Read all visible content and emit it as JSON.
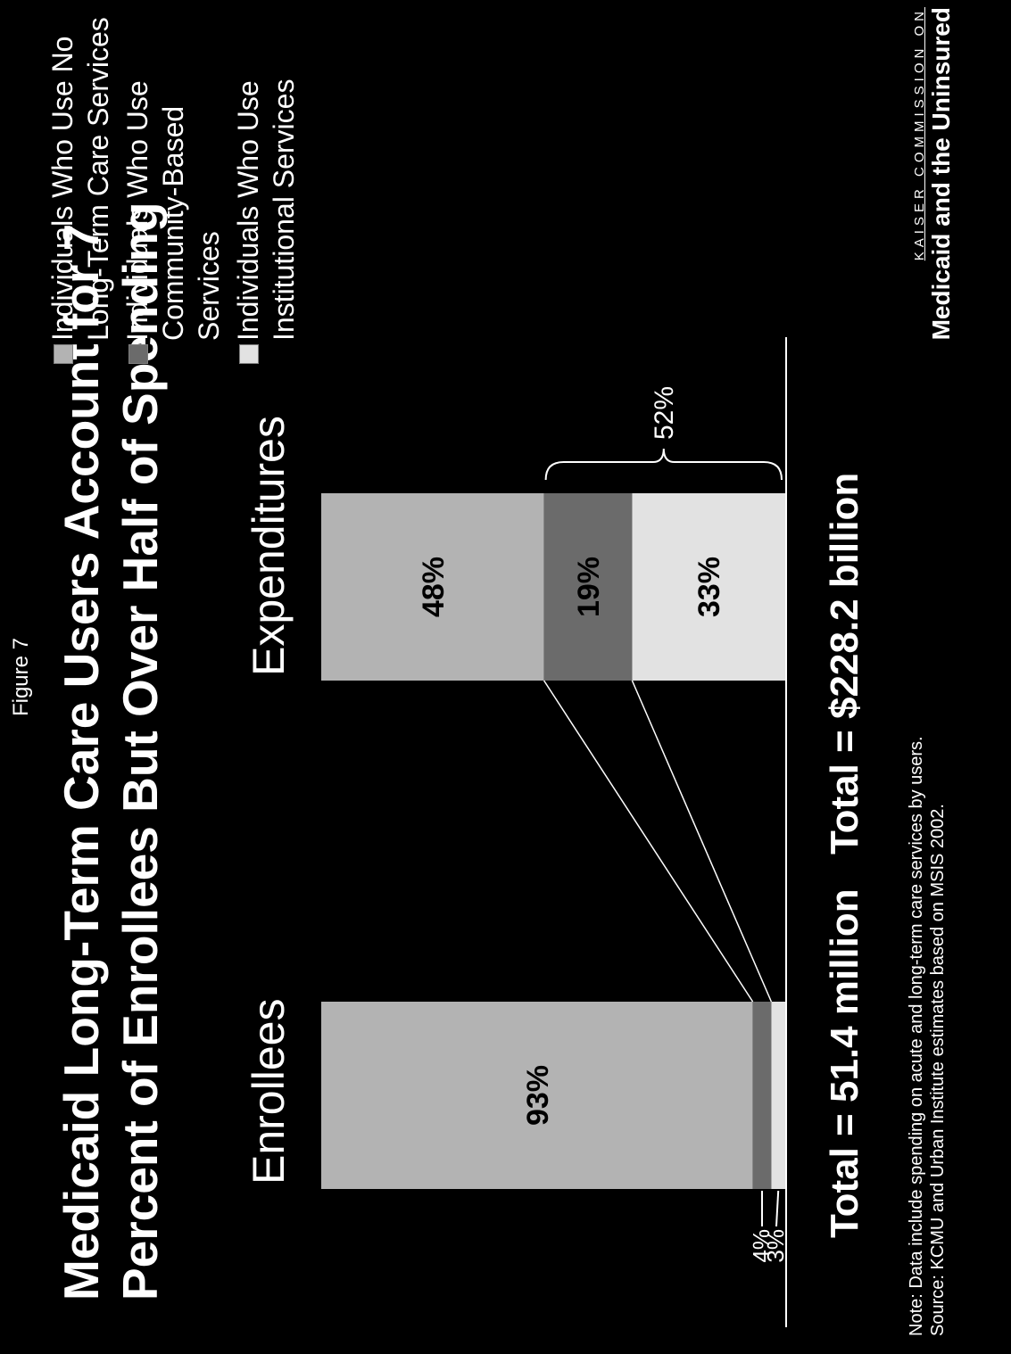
{
  "figure_label": "Figure 7",
  "title_line1": "Medicaid Long-Term Care Users Account for 7",
  "title_line2": "Percent of Enrollees But Over Half of Spending",
  "note": "Note: Data include spending on acute and long-term care services by users.",
  "source": "Source: KCMU and Urban Institute estimates based on MSIS 2002.",
  "brand": {
    "line1": "KAISER COMMISSION ON",
    "line2": "Medicaid and the Uninsured"
  },
  "colors": {
    "no_ltc": "#b3b3b3",
    "community": "#6b6b6b",
    "institutional": "#e2e2e2",
    "background": "#000000"
  },
  "chart_data": {
    "type": "bar",
    "stacked": true,
    "percent_stacked": true,
    "categories": [
      "Enrollees",
      "Expenditures"
    ],
    "series": [
      {
        "name": "Individuals Who Use No Long-Term Care Services",
        "values": [
          93,
          48
        ],
        "color": "#b3b3b3"
      },
      {
        "name": "Individuals Who Use Community-Based Services",
        "values": [
          4,
          19
        ],
        "color": "#6b6b6b"
      },
      {
        "name": "Individuals Who Use Institutional Services",
        "values": [
          3,
          33
        ],
        "color": "#e2e2e2"
      }
    ],
    "data_labels": [
      [
        "93%",
        "4%",
        "3%"
      ],
      [
        "48%",
        "19%",
        "33%"
      ]
    ],
    "totals": [
      "Total = 51.4 million",
      "Total = $228.2 billion"
    ],
    "bracket_label": "52%",
    "legend_position": "right"
  }
}
